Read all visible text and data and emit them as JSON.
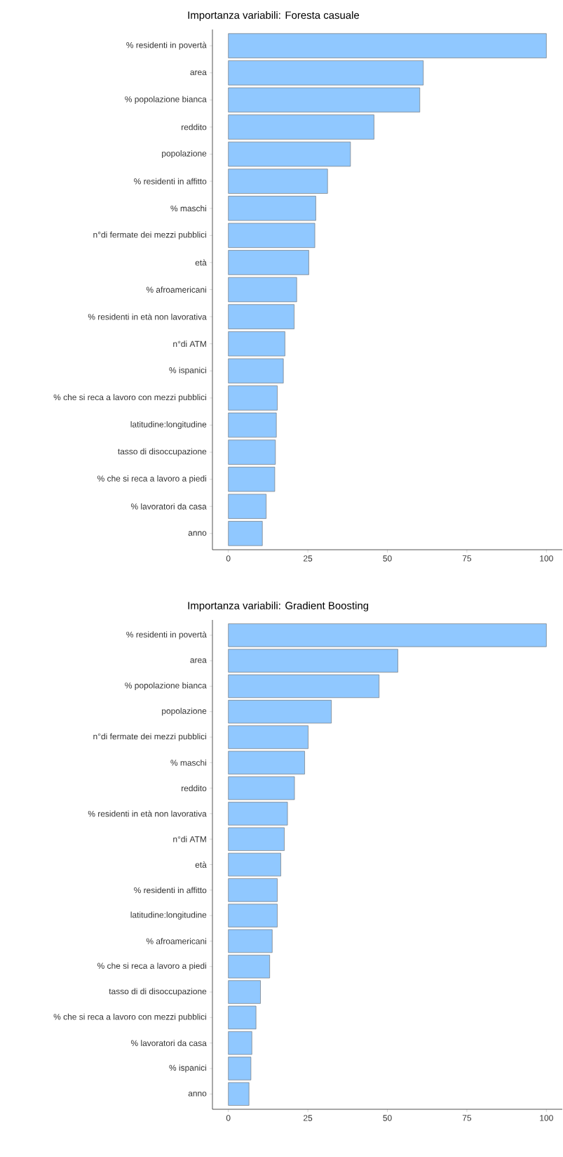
{
  "chart_data": [
    {
      "type": "bar",
      "orientation": "horizontal",
      "title": "Importanza variabili: Foresta casuale",
      "color": "#90c8ff",
      "categories": [
        "% residenti in povertà",
        "area",
        "% popolazione bianca",
        "reddito",
        "popolazione",
        "% residenti in affitto",
        "% maschi",
        "n°di fermate dei mezzi pubblici",
        "età",
        "% afroamericani",
        "% residenti in età non lavorativa",
        "n°di ATM",
        "% ispanici",
        "% che si reca a lavoro con mezzi pubblici",
        "latitudine:longitudine",
        "tasso di disoccupazione",
        "% che si reca a lavoro a piedi",
        "% lavoratori da casa",
        "anno"
      ],
      "values": [
        100,
        61.3,
        60.2,
        45.8,
        38.4,
        31.2,
        27.5,
        27.2,
        25.3,
        21.5,
        20.7,
        17.8,
        17.3,
        15.4,
        15.1,
        14.8,
        14.6,
        11.9,
        10.7
      ],
      "xlim": [
        -5,
        105
      ],
      "xticks": [
        0,
        25,
        50,
        75,
        100
      ]
    },
    {
      "type": "bar",
      "orientation": "horizontal",
      "title": "Importanza variabili: Gradient Boosting",
      "color": "#90c8ff",
      "categories": [
        "% residenti in povertà",
        "area",
        "% popolazione bianca",
        "popolazione",
        "n°di fermate dei mezzi pubblici",
        "% maschi",
        "reddito",
        "% residenti in età non lavorativa",
        "n°di ATM",
        "età",
        "% residenti in affitto",
        "latitudine:longitudine",
        "% afroamericani",
        "% che si reca a lavoro a piedi",
        "tasso di di disoccupazione",
        "% che si reca a lavoro con mezzi pubblici",
        "% lavoratori da casa",
        "% ispanici",
        "anno"
      ],
      "values": [
        100,
        53.3,
        47.4,
        32.4,
        25.1,
        24.0,
        20.8,
        18.6,
        17.6,
        16.5,
        15.4,
        15.4,
        13.8,
        13.0,
        10.1,
        8.7,
        7.4,
        7.1,
        6.5
      ],
      "xlim": [
        -5,
        105
      ],
      "xticks": [
        0,
        25,
        50,
        75,
        100
      ]
    }
  ]
}
